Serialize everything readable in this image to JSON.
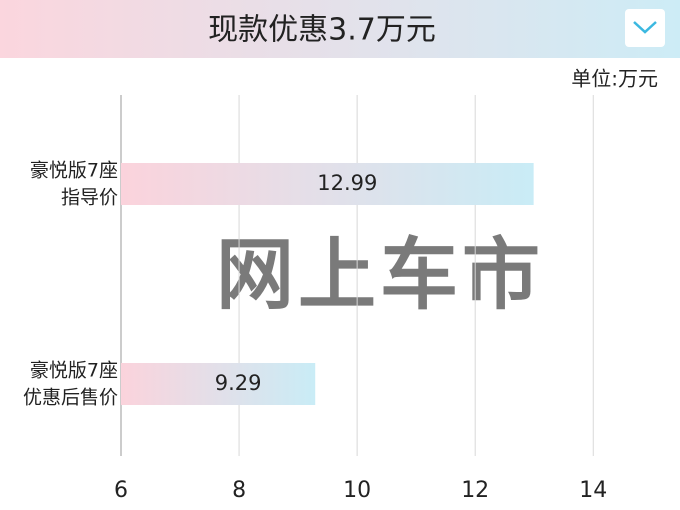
{
  "chart_data": {
    "type": "bar",
    "orientation": "horizontal",
    "title": "现款优惠3.7万元",
    "unit_label": "单位:万元",
    "watermark": "网上车市",
    "categories": [
      [
        "豪悦版7座",
        "指导价"
      ],
      [
        "豪悦版7座",
        "优惠后售价"
      ]
    ],
    "values": [
      12.99,
      9.29
    ],
    "color_start": "#fbd3dc",
    "color_end": "#c9ecf6",
    "xlim": [
      6,
      15.3
    ],
    "xticks": [
      6,
      8,
      10,
      12,
      14
    ],
    "grid": true
  }
}
